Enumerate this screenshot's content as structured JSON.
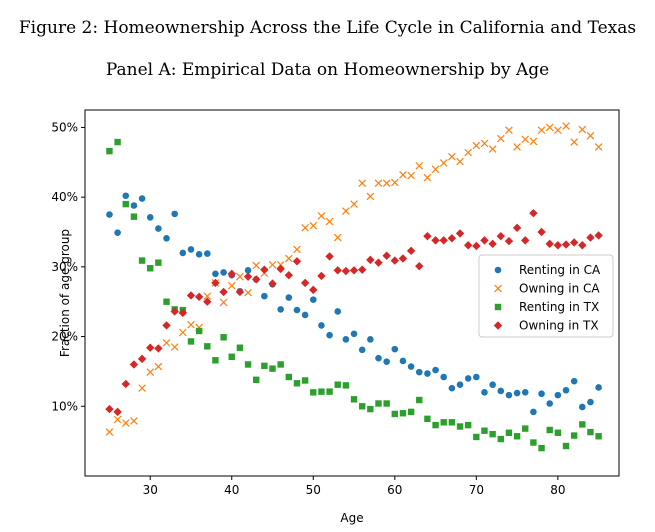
{
  "figure_caption": "Figure 2: Homeownership Across the Life Cycle in California and Texas",
  "panel_title": "Panel A: Empirical Data on Homeownership by Age",
  "colors": {
    "renting_ca": "#1f77b4",
    "owning_ca": "#ff7f0e",
    "renting_tx": "#2ca02c",
    "owning_tx": "#d62728"
  },
  "chart_data": {
    "type": "scatter",
    "title": "",
    "xlabel": "Age",
    "ylabel": "Fraction of age group",
    "xlim": [
      22,
      87.5
    ],
    "ylim": [
      0.0,
      0.525
    ],
    "x_ticks": [
      30,
      40,
      50,
      60,
      70,
      80
    ],
    "y_ticks": [
      0.1,
      0.2,
      0.3,
      0.4,
      0.5
    ],
    "y_tick_labels": [
      "10%",
      "20%",
      "30%",
      "40%",
      "50%"
    ],
    "x_tick_labels": [
      "30",
      "40",
      "50",
      "60",
      "70",
      "80"
    ],
    "grid": false,
    "legend_position": "center-right",
    "series": [
      {
        "name": "Renting in CA",
        "marker": "circle",
        "color": "#1f77b4",
        "x": [
          25,
          26,
          27,
          28,
          29,
          30,
          31,
          32,
          33,
          34,
          35,
          36,
          37,
          38,
          39,
          40,
          41,
          42,
          43,
          44,
          45,
          46,
          47,
          48,
          49,
          50,
          51,
          52,
          53,
          54,
          55,
          56,
          57,
          58,
          59,
          60,
          61,
          62,
          63,
          64,
          65,
          66,
          67,
          68,
          69,
          70,
          71,
          72,
          73,
          74,
          75,
          76,
          77,
          78,
          79,
          80,
          81,
          82,
          83,
          84,
          85
        ],
        "y": [
          0.375,
          0.349,
          0.402,
          0.388,
          0.398,
          0.371,
          0.355,
          0.341,
          0.376,
          0.32,
          0.325,
          0.318,
          0.319,
          0.29,
          0.292,
          0.288,
          0.265,
          0.295,
          0.282,
          0.258,
          0.275,
          0.239,
          0.256,
          0.238,
          0.231,
          0.253,
          0.216,
          0.202,
          0.236,
          0.196,
          0.204,
          0.181,
          0.196,
          0.169,
          0.164,
          0.182,
          0.165,
          0.157,
          0.149,
          0.147,
          0.152,
          0.142,
          0.126,
          0.131,
          0.14,
          0.142,
          0.12,
          0.131,
          0.122,
          0.116,
          0.119,
          0.12,
          0.092,
          0.118,
          0.104,
          0.116,
          0.123,
          0.136,
          0.099,
          0.106,
          0.127
        ]
      },
      {
        "name": "Owning in CA",
        "marker": "x",
        "color": "#ff7f0e",
        "x": [
          25,
          26,
          27,
          28,
          29,
          30,
          31,
          32,
          33,
          34,
          35,
          36,
          37,
          38,
          39,
          40,
          41,
          42,
          43,
          44,
          45,
          46,
          47,
          48,
          49,
          50,
          51,
          52,
          53,
          54,
          55,
          56,
          57,
          58,
          59,
          60,
          61,
          62,
          63,
          64,
          65,
          66,
          67,
          68,
          69,
          70,
          71,
          72,
          73,
          74,
          75,
          76,
          77,
          78,
          79,
          80,
          81,
          82,
          83,
          84,
          85
        ],
        "y": [
          0.063,
          0.081,
          0.076,
          0.079,
          0.126,
          0.149,
          0.157,
          0.191,
          0.185,
          0.206,
          0.217,
          0.213,
          0.258,
          0.277,
          0.249,
          0.273,
          0.286,
          0.263,
          0.302,
          0.291,
          0.303,
          0.303,
          0.312,
          0.325,
          0.356,
          0.359,
          0.373,
          0.365,
          0.342,
          0.38,
          0.39,
          0.42,
          0.401,
          0.42,
          0.42,
          0.421,
          0.432,
          0.431,
          0.445,
          0.428,
          0.44,
          0.449,
          0.458,
          0.451,
          0.464,
          0.474,
          0.477,
          0.469,
          0.484,
          0.496,
          0.472,
          0.483,
          0.48,
          0.496,
          0.5,
          0.496,
          0.502,
          0.479,
          0.497,
          0.488,
          0.472
        ]
      },
      {
        "name": "Renting in TX",
        "marker": "square",
        "color": "#2ca02c",
        "x": [
          25,
          26,
          27,
          28,
          29,
          30,
          31,
          32,
          33,
          34,
          35,
          36,
          37,
          38,
          39,
          40,
          41,
          42,
          43,
          44,
          45,
          46,
          47,
          48,
          49,
          50,
          51,
          52,
          53,
          54,
          55,
          56,
          57,
          58,
          59,
          60,
          61,
          62,
          63,
          64,
          65,
          66,
          67,
          68,
          69,
          70,
          71,
          72,
          73,
          74,
          75,
          76,
          77,
          78,
          79,
          80,
          81,
          82,
          83,
          84,
          85
        ],
        "y": [
          0.466,
          0.479,
          0.39,
          0.372,
          0.309,
          0.298,
          0.306,
          0.25,
          0.239,
          0.238,
          0.193,
          0.208,
          0.186,
          0.166,
          0.199,
          0.171,
          0.184,
          0.16,
          0.138,
          0.158,
          0.154,
          0.16,
          0.142,
          0.133,
          0.137,
          0.12,
          0.121,
          0.121,
          0.131,
          0.13,
          0.11,
          0.1,
          0.096,
          0.104,
          0.104,
          0.089,
          0.09,
          0.092,
          0.109,
          0.082,
          0.073,
          0.077,
          0.077,
          0.071,
          0.073,
          0.056,
          0.065,
          0.06,
          0.053,
          0.062,
          0.057,
          0.068,
          0.048,
          0.04,
          0.066,
          0.062,
          0.043,
          0.058,
          0.074,
          0.063,
          0.057
        ]
      },
      {
        "name": "Owning in TX",
        "marker": "diamond",
        "color": "#d62728",
        "x": [
          25,
          26,
          27,
          28,
          29,
          30,
          31,
          32,
          33,
          34,
          35,
          36,
          37,
          38,
          39,
          40,
          41,
          42,
          43,
          44,
          45,
          46,
          47,
          48,
          49,
          50,
          51,
          52,
          53,
          54,
          55,
          56,
          57,
          58,
          59,
          60,
          61,
          62,
          63,
          64,
          65,
          66,
          67,
          68,
          69,
          70,
          71,
          72,
          73,
          74,
          75,
          76,
          77,
          78,
          79,
          80,
          81,
          82,
          83,
          84,
          85
        ],
        "y": [
          0.096,
          0.092,
          0.132,
          0.16,
          0.168,
          0.184,
          0.183,
          0.216,
          0.236,
          0.234,
          0.259,
          0.257,
          0.25,
          0.277,
          0.264,
          0.29,
          0.264,
          0.286,
          0.282,
          0.296,
          0.276,
          0.297,
          0.288,
          0.308,
          0.277,
          0.267,
          0.287,
          0.315,
          0.295,
          0.294,
          0.295,
          0.296,
          0.31,
          0.306,
          0.316,
          0.309,
          0.312,
          0.323,
          0.301,
          0.344,
          0.338,
          0.338,
          0.341,
          0.348,
          0.331,
          0.33,
          0.338,
          0.333,
          0.344,
          0.337,
          0.356,
          0.338,
          0.377,
          0.35,
          0.333,
          0.331,
          0.332,
          0.335,
          0.331,
          0.342,
          0.345
        ]
      }
    ]
  }
}
